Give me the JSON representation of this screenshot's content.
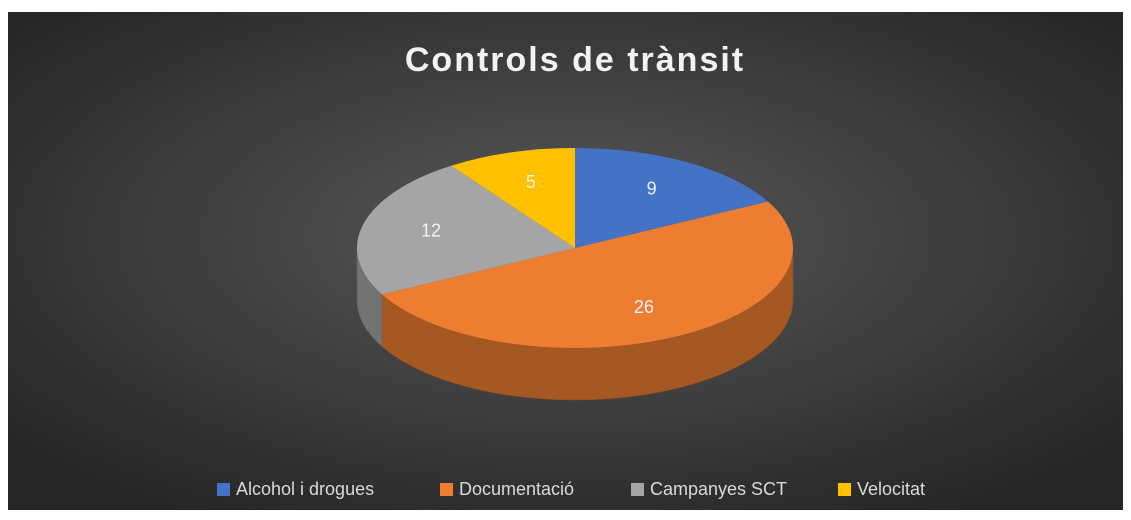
{
  "chart_data": {
    "type": "pie3d",
    "title": "Controls de trànsit",
    "categories": [
      "Alcohol i drogues",
      "Documentació",
      "Campanyes SCT",
      "Velocitat"
    ],
    "values": [
      9,
      26,
      12,
      5
    ],
    "colors": [
      "#4472c4",
      "#ed7d31",
      "#a5a5a5",
      "#ffc000"
    ],
    "legend": "bottom"
  }
}
